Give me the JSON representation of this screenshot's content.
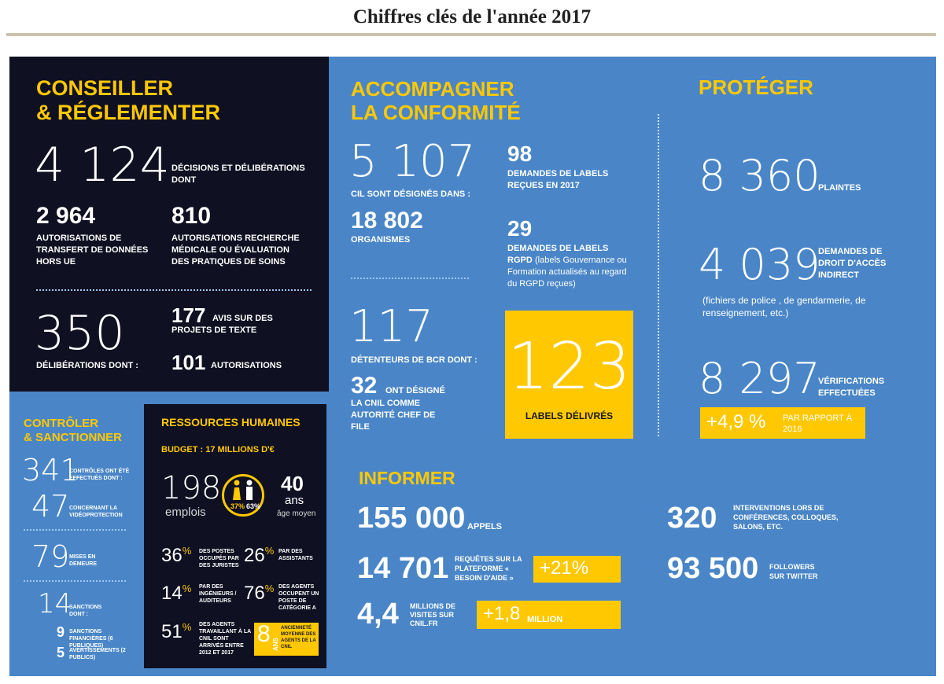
{
  "title": "Chiffres clés de l'année 2017",
  "colors": {
    "accent": "#ffc800",
    "dark_panel": "#0f1021",
    "blue": "#4a86c7"
  },
  "conseiller": {
    "heading_1": "CONSEILLER",
    "heading_2": "& RÉGLEMENTER",
    "decisions_value": "4 124",
    "decisions_label": "DÉCISIONS ET DÉLIBÉRATIONS DONT",
    "transfert_value": "2 964",
    "transfert_label": "AUTORISATIONS DE TRANSFERT DE DONNÉES HORS UE",
    "recherche_value": "810",
    "recherche_label": "AUTORISATIONS RECHERCHE MÉDICALE OU ÉVALUATION DES PRATIQUES DE SOINS",
    "deliberations_value": "350",
    "deliberations_label": "DÉLIBÉRATIONS DONT :",
    "avis_value": "177",
    "avis_label": "AVIS SUR DES PROJETS DE TEXTE",
    "autorisations_value": "101",
    "autorisations_label": "AUTORISATIONS"
  },
  "controler": {
    "heading_1": "CONTRÔLER",
    "heading_2": "& SANCTIONNER",
    "controles_value": "341",
    "controles_label": "CONTRÔLES ONT ÉTÉ EFFECTUÉS DONT :",
    "video_value": "47",
    "video_label": "CONCERNANT LA VIDÉOPROTECTION",
    "mises_value": "79",
    "mises_label": "MISES EN DEMEURE",
    "sanctions_value": "14",
    "sanctions_label": "SANCTIONS DONT :",
    "financieres_value": "9",
    "financieres_label": "SANCTIONS FINANCIÈRES (6 PUBLIQUES)",
    "avertissements_value": "5",
    "avertissements_label": "AVERTISSEMENTS (2 PUBLICS)"
  },
  "rh": {
    "heading": "RESSOURCES HUMAINES",
    "budget": "BUDGET : 17 MILLIONS D'€",
    "emplois_value": "198",
    "emplois_label": "emplois",
    "pct_women": "37%",
    "pct_men": "63%",
    "age_value": "40",
    "age_unit": "ans",
    "age_label": "âge moyen",
    "juristes_value": "36",
    "juristes_label": "DES POSTES OCCUPÉS PAR DES JURISTES",
    "assistants_value": "26",
    "assistants_label": "PAR DES ASSISTANTS",
    "ingenieurs_value": "14",
    "ingenieurs_label": "PAR DES INGÉNIEURS / AUDITEURS",
    "categorie_value": "76",
    "categorie_label": "DES AGENTS OCCUPENT UN POSTE DE CATÉGORIE A",
    "arrives_value": "51",
    "arrives_label": "DES AGENTS TRAVAILLANT À LA CNIL SONT ARRIVÉS ENTRE 2012 ET 2017",
    "anciennete_value": "8",
    "anciennete_unit": "ANS",
    "anciennete_label": "ANCIENNETÉ MOYENNE DES AGENTS DE LA CNIL",
    "pct_sign": "%"
  },
  "accompagner": {
    "heading_1": "ACCOMPAGNER",
    "heading_2": "LA CONFORMITÉ",
    "cil_value": "5 107",
    "cil_label": "CIL SONT DÉSIGNÉS DANS :",
    "organismes_value": "18 802",
    "organismes_label": "ORGANISMES",
    "labels_value": "98",
    "labels_label": "DEMANDES DE LABELS REÇUES EN 2017",
    "rgpd_value": "29",
    "rgpd_label_1": "DEMANDES DE LABELS",
    "rgpd_label_2": "RGPD",
    "rgpd_label_3": "(labels Gouvernance ou Formation actualisés au regard du RGPD reçues)",
    "bcr_value": "117",
    "bcr_label": "DÉTENTEURS DE BCR DONT :",
    "chef_value": "32",
    "chef_label_1": "ONT DÉSIGNÉ",
    "chef_label_2": "LA CNIL COMME AUTORITÉ CHEF DE FILE",
    "delivres_value": "123",
    "delivres_label": "LABELS DÉLIVRÉS"
  },
  "proteger": {
    "heading": "PROTÉGER",
    "plaintes_value": "8 360",
    "plaintes_label": "PLAINTES",
    "droit_value": "4 039",
    "droit_label": "DEMANDES DE DROIT D'ACCÈS INDIRECT",
    "droit_note": "(fichiers de police , de gendarmerie, de renseignement, etc.)",
    "verif_value": "8 297",
    "verif_label": "VÉRIFICATIONS EFFECTUÉES",
    "growth_value": "+4,9 %",
    "growth_label": "PAR RAPPORT À 2016"
  },
  "informer": {
    "heading": "INFORMER",
    "appels_value": "155 000",
    "appels_label": "APPELS",
    "requetes_value": "14 701",
    "requetes_label": "REQUÊTES SUR LA PLATEFORME « BESOIN D'AIDE »",
    "requetes_growth": "+21%",
    "visites_value": "4,4",
    "visites_label": "MILLIONS DE VISITES SUR CNIL.FR",
    "visites_growth": "+1,8",
    "visites_growth_unit": "MILLION",
    "interventions_value": "320",
    "interventions_label": "INTERVENTIONS LORS DE CONFÉRENCES, COLLOQUES, SALONS, ETC.",
    "followers_value": "93 500",
    "followers_label": "FOLLOWERS SUR TWITTER"
  }
}
